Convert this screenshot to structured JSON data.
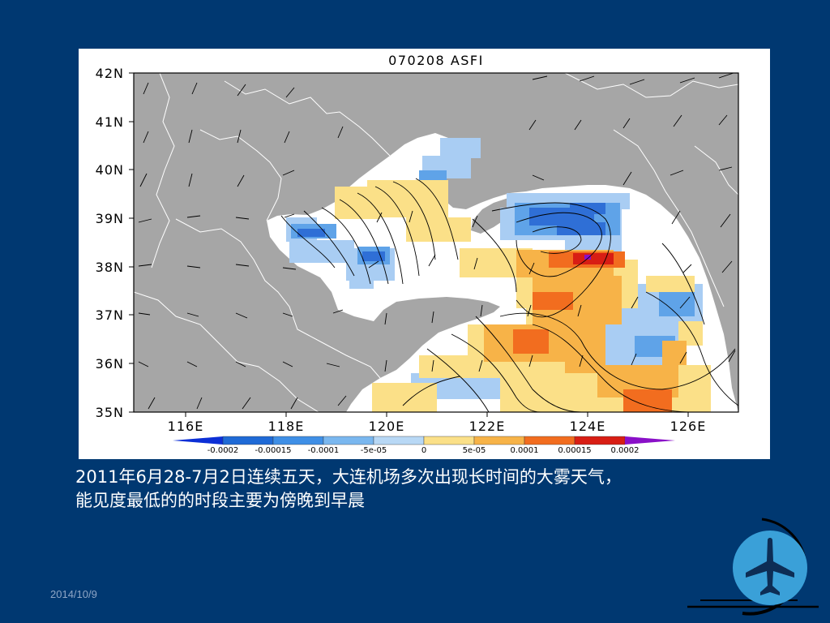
{
  "map": {
    "title": "070208 ASFI",
    "lat_labels": [
      "42N",
      "41N",
      "40N",
      "39N",
      "38N",
      "37N",
      "36N",
      "35N"
    ],
    "lon_labels": [
      "116E",
      "118E",
      "120E",
      "122E",
      "124E",
      "126E"
    ],
    "colorbar": {
      "labels": [
        "-0.0002",
        "-0.00015",
        "-0.0001",
        "-5e-05",
        "0",
        "5e-05",
        "0.0001",
        "0.00015",
        "0.0002"
      ],
      "colors": [
        "#0c2fd6",
        "#1f6ad6",
        "#3f8fe6",
        "#7ab7ef",
        "#b8d8f5",
        "#fbe088",
        "#f7b348",
        "#f26d1f",
        "#d81e14",
        "#8a10c8"
      ]
    },
    "colors": {
      "land": "#a6a6a6",
      "sea": "#ffffff",
      "border": "#ffffff",
      "contour": "#000000"
    }
  },
  "caption": {
    "line1": "2011年6月28-7月2日连续五天，大连机场多次出现长时间的大雾天气，",
    "line2": "能见度最低的的时段主要为傍晚到早晨"
  },
  "footer": {
    "date": "2014/10/9"
  },
  "logo": {
    "icon": "airplane-icon",
    "circle_color": "#3aa0d8"
  }
}
